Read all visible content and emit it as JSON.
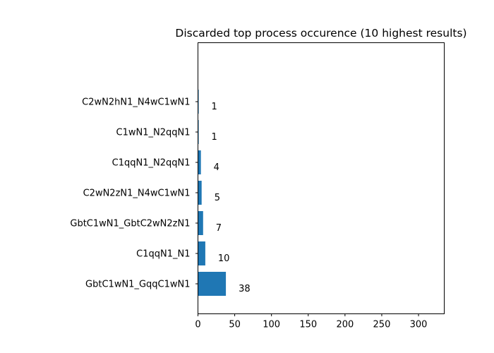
{
  "chart_data": {
    "type": "bar",
    "orientation": "horizontal",
    "title": "Discarded top process occurence (10 highest results)",
    "xlabel": "",
    "ylabel": "",
    "categories": [
      "GbtC1wN1_GqqC1wN1",
      "C1qqN1_N1",
      "GbtC1wN1_GbtC2wN2zN1",
      "C2wN2zN1_N4wC1wN1",
      "C1qqN1_N2qqN1",
      "C1wN1_N2qqN1",
      "C2wN2hN1_N4wC1wN1"
    ],
    "values": [
      38,
      10,
      7,
      5,
      4,
      1,
      1
    ],
    "data_labels": [
      "38",
      "10",
      "7",
      "5",
      "4",
      "1",
      "1"
    ],
    "xlim": [
      0,
      335
    ],
    "xticks": [
      0,
      50,
      100,
      150,
      200,
      250,
      300
    ],
    "xtick_labels": [
      "0",
      "50",
      "100",
      "150",
      "200",
      "250",
      "300"
    ],
    "bar_color": "#1f77b4",
    "grid": false,
    "legend": "none"
  }
}
